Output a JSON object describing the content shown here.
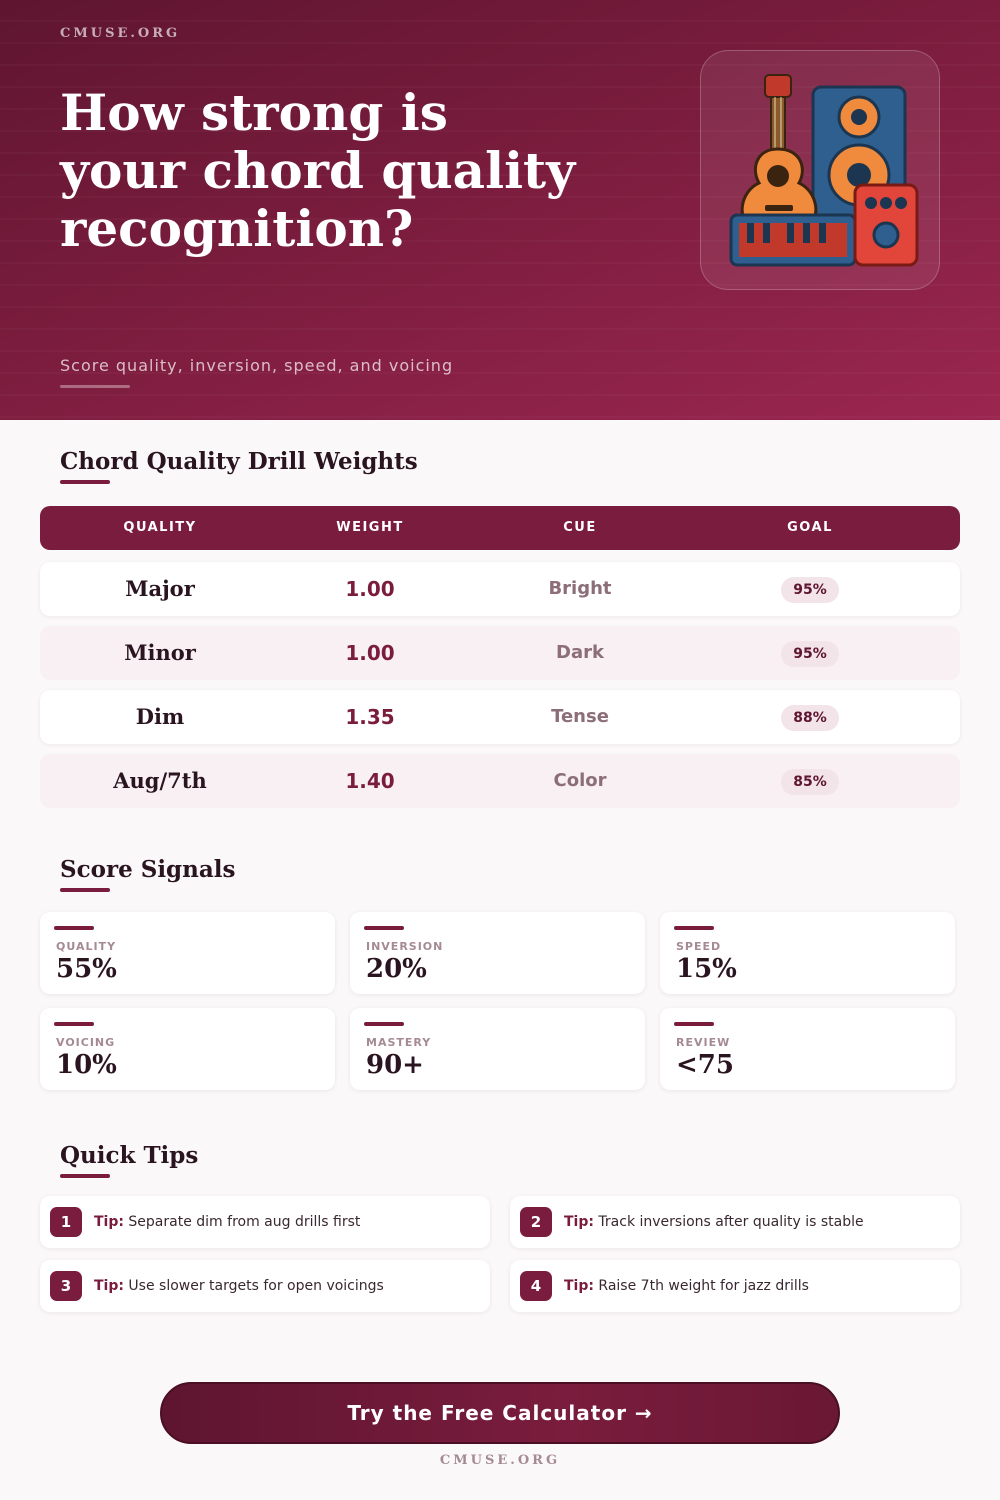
{
  "brand": "CMUSE.ORG",
  "hero": {
    "title": "How strong is your chord quality recognition?",
    "subtitle": "Score quality, inversion, speed, and voicing"
  },
  "weights": {
    "title": "Chord Quality Drill Weights",
    "headers": [
      "QUALITY",
      "WEIGHT",
      "CUE",
      "GOAL"
    ],
    "rows": [
      {
        "quality": "Major",
        "weight": "1.00",
        "cue": "Bright",
        "goal": "95%"
      },
      {
        "quality": "Minor",
        "weight": "1.00",
        "cue": "Dark",
        "goal": "95%"
      },
      {
        "quality": "Dim",
        "weight": "1.35",
        "cue": "Tense",
        "goal": "88%"
      },
      {
        "quality": "Aug/7th",
        "weight": "1.40",
        "cue": "Color",
        "goal": "85%"
      }
    ]
  },
  "signals": {
    "title": "Score Signals",
    "items": [
      {
        "label": "QUALITY",
        "value": "55%"
      },
      {
        "label": "INVERSION",
        "value": "20%"
      },
      {
        "label": "SPEED",
        "value": "15%"
      },
      {
        "label": "VOICING",
        "value": "10%"
      },
      {
        "label": "MASTERY",
        "value": "90+"
      },
      {
        "label": "REVIEW",
        "value": "<75"
      }
    ]
  },
  "tips": {
    "title": "Quick Tips",
    "prefix": "Tip:",
    "items": [
      {
        "num": "1",
        "text": "Separate dim from aug drills first"
      },
      {
        "num": "2",
        "text": "Track inversions after quality is stable"
      },
      {
        "num": "3",
        "text": "Use slower targets for open voicings"
      },
      {
        "num": "4",
        "text": "Raise 7th weight for jazz drills"
      }
    ]
  },
  "cta": {
    "label": "Try the Free Calculator →"
  },
  "colors": {
    "accent": "#7a1c3d",
    "hero_dark": "#5e1530",
    "hero_light": "#9b2650"
  },
  "icons": {
    "hero": "music-instruments-icon"
  }
}
